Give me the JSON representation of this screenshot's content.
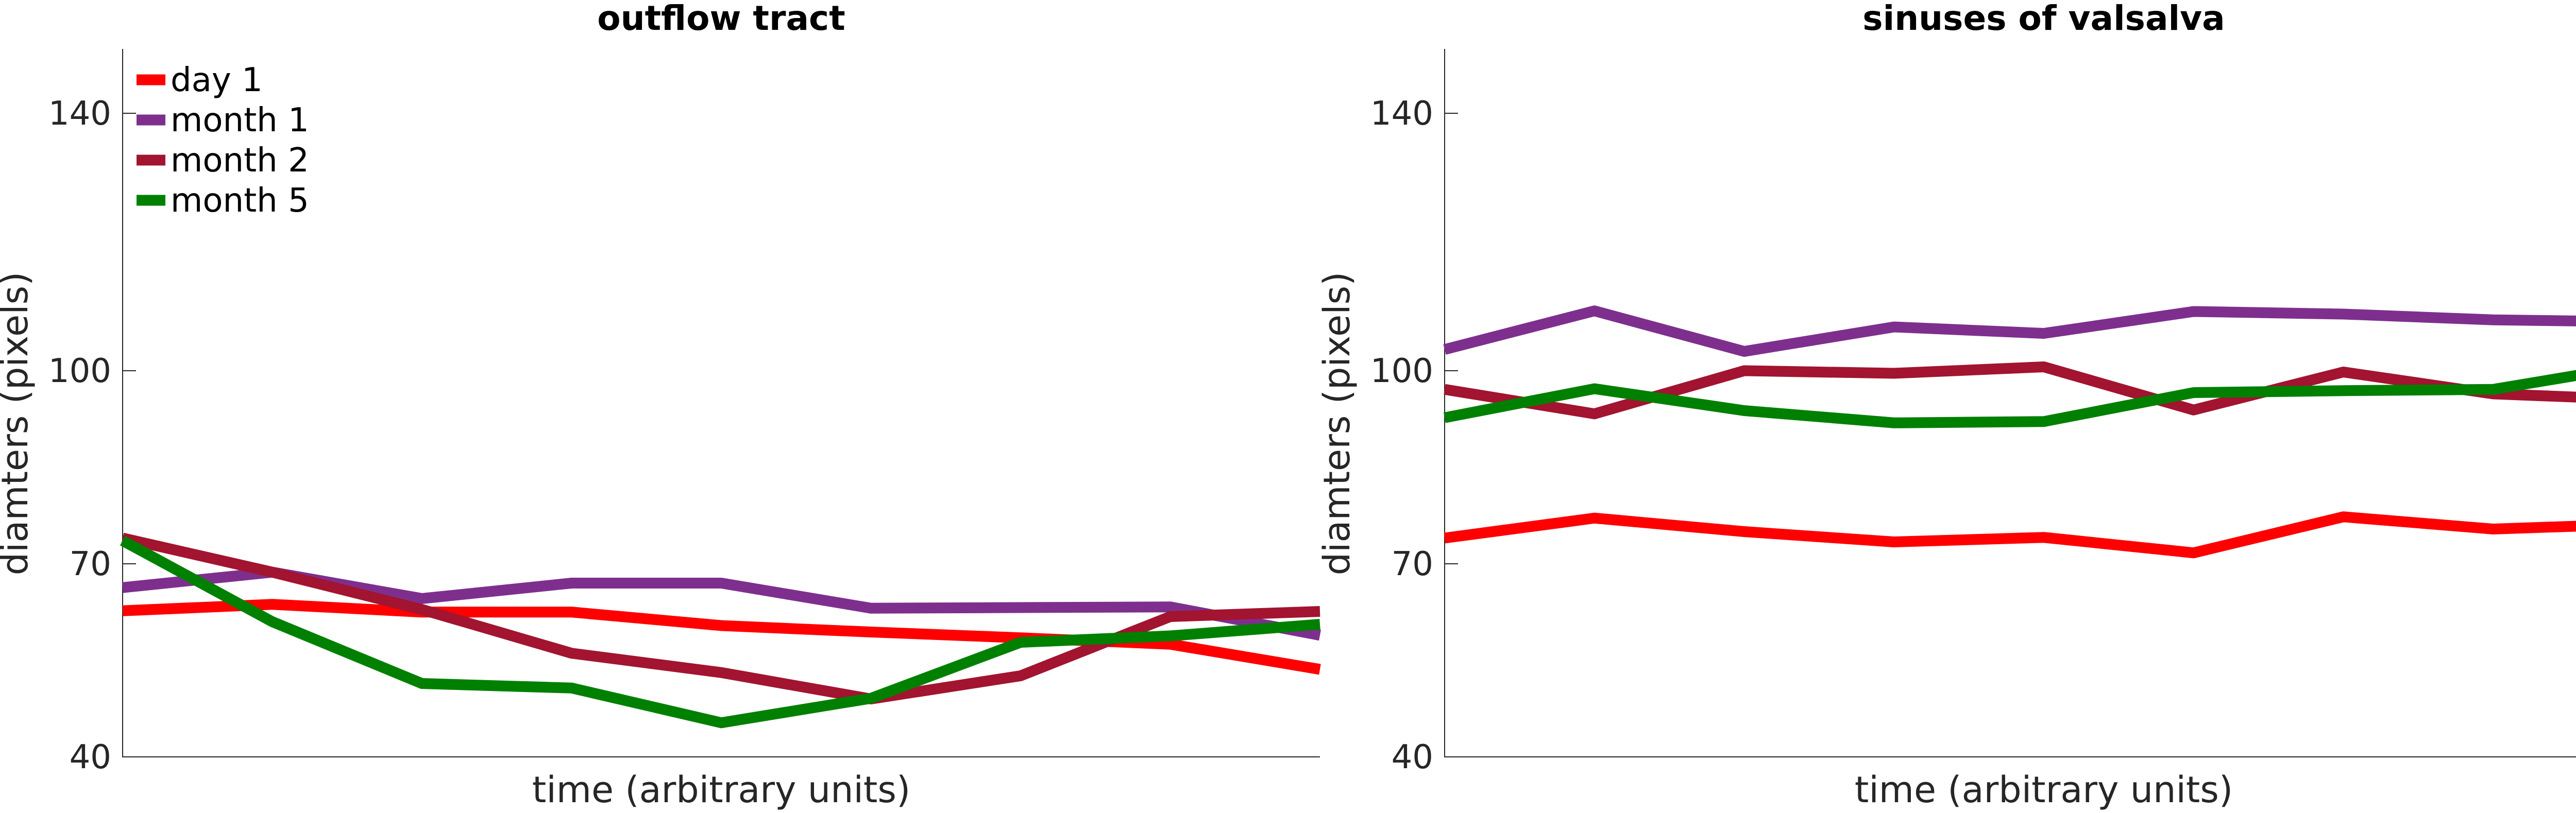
{
  "chart_data": [
    {
      "type": "line",
      "title": "outflow tract",
      "xlabel": "time (arbitrary units)",
      "ylabel": "diamters (pixels)",
      "ylim": [
        40,
        150
      ],
      "yticks": [
        40,
        70,
        100,
        140
      ],
      "x": [
        1,
        2,
        3,
        4,
        5,
        6,
        7,
        8,
        9
      ],
      "xlim": [
        1,
        9
      ],
      "legend": "top-left",
      "series": [
        {
          "name": "day 1",
          "color": "#ff0000",
          "values": [
            62.7,
            63.7,
            62.5,
            62.5,
            60.4,
            59.4,
            58.5,
            57.5,
            53.6
          ]
        },
        {
          "name": "month 1",
          "color": "#7e2f8e",
          "values": [
            66.3,
            68.7,
            64.6,
            67.0,
            67.0,
            63.1,
            63.2,
            63.3,
            58.9
          ]
        },
        {
          "name": "month 2",
          "color": "#a2142f",
          "values": [
            74.0,
            68.7,
            62.9,
            56.1,
            53.1,
            49.0,
            52.6,
            61.8,
            62.6
          ]
        },
        {
          "name": "month 5",
          "color": "#008000",
          "values": [
            73.6,
            61.0,
            51.4,
            50.7,
            45.3,
            49.1,
            57.8,
            58.8,
            60.6
          ]
        }
      ]
    },
    {
      "type": "line",
      "title": "sinuses of valsalva",
      "xlabel": "time (arbitrary units)",
      "ylabel": "diamters (pixels)",
      "ylim": [
        40,
        150
      ],
      "yticks": [
        40,
        70,
        100,
        140
      ],
      "x": [
        1,
        2,
        3,
        4,
        5,
        6,
        7,
        8,
        9
      ],
      "xlim": [
        1,
        9
      ],
      "series": [
        {
          "name": "day 1",
          "color": "#ff0000",
          "values": [
            74.0,
            77.1,
            75.0,
            73.4,
            74.1,
            71.7,
            77.3,
            75.4,
            76.2
          ]
        },
        {
          "name": "month 1",
          "color": "#7e2f8e",
          "values": [
            103.3,
            109.3,
            103.0,
            106.8,
            105.8,
            109.2,
            108.8,
            107.9,
            107.6
          ]
        },
        {
          "name": "month 2",
          "color": "#a2142f",
          "values": [
            97.1,
            93.3,
            100.0,
            99.6,
            100.6,
            93.9,
            99.8,
            96.4,
            95.5
          ]
        },
        {
          "name": "month 5",
          "color": "#008000",
          "values": [
            92.7,
            97.2,
            93.8,
            91.9,
            92.1,
            96.6,
            96.9,
            97.1,
            101.0
          ]
        }
      ]
    }
  ]
}
